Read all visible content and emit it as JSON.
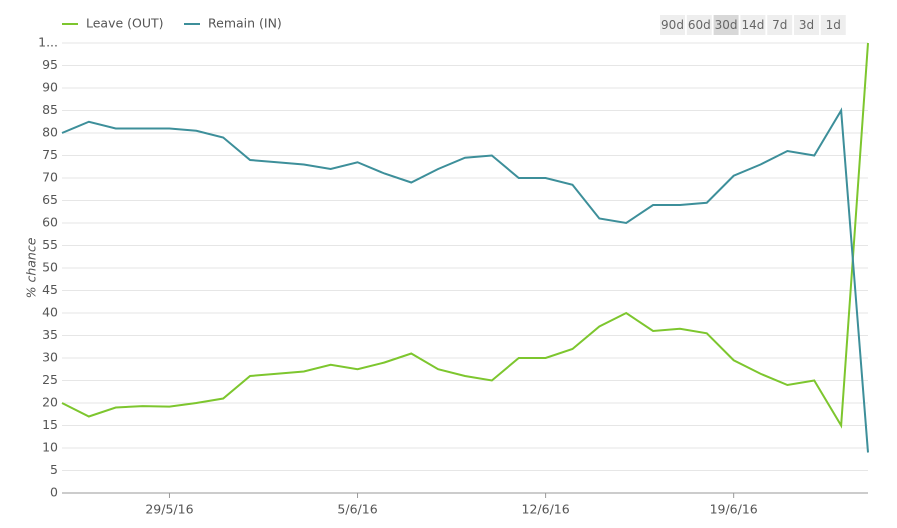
{
  "chart_data": {
    "type": "line",
    "y_label": "% chance",
    "x": [
      "25/5/16",
      "26/5/16",
      "27/5/16",
      "28/5/16",
      "29/5/16",
      "30/5/16",
      "31/5/16",
      "1/6/16",
      "2/6/16",
      "3/6/16",
      "4/6/16",
      "5/6/16",
      "6/6/16",
      "7/6/16",
      "8/6/16",
      "9/6/16",
      "10/6/16",
      "11/6/16",
      "12/6/16",
      "13/6/16",
      "14/6/16",
      "15/6/16",
      "16/6/16",
      "17/6/16",
      "18/6/16",
      "19/6/16",
      "20/6/16",
      "21/6/16",
      "22/6/16",
      "23/6/16",
      "24/6/16"
    ],
    "series": [
      {
        "name": "Leave (OUT)",
        "color": "#7dc62e",
        "values": [
          20,
          17,
          19,
          19.3,
          19.2,
          20,
          21,
          26,
          26.5,
          27,
          28.5,
          27.5,
          29,
          31,
          27.5,
          26,
          25,
          30,
          30,
          32,
          37,
          40,
          36,
          36.5,
          35.5,
          29.5,
          26.5,
          24,
          25,
          15,
          100
        ]
      },
      {
        "name": "Remain (IN)",
        "color": "#3d8f9a",
        "values": [
          80,
          82.5,
          81,
          81,
          81,
          80.5,
          79,
          74,
          73.5,
          73,
          72,
          73.5,
          71,
          69,
          72,
          74.5,
          75,
          70,
          70,
          68.5,
          61,
          60,
          64,
          64,
          64.5,
          70.5,
          73,
          76,
          75,
          85,
          9
        ]
      }
    ],
    "xlim": [
      "25/5/16",
      "24/6/16"
    ],
    "xticks": [
      "29/5/16",
      "5/6/16",
      "12/6/16",
      "19/6/16"
    ],
    "ylim": [
      0,
      100
    ],
    "yticks": [
      0,
      5,
      10,
      15,
      20,
      25,
      30,
      35,
      40,
      45,
      50,
      55,
      60,
      65,
      70,
      75,
      80,
      85,
      90,
      95,
      {
        "value": 100,
        "label": "1..."
      }
    ],
    "grid": true,
    "range_buttons": [
      "90d",
      "60d",
      "30d",
      "14d",
      "7d",
      "3d",
      "1d"
    ]
  }
}
